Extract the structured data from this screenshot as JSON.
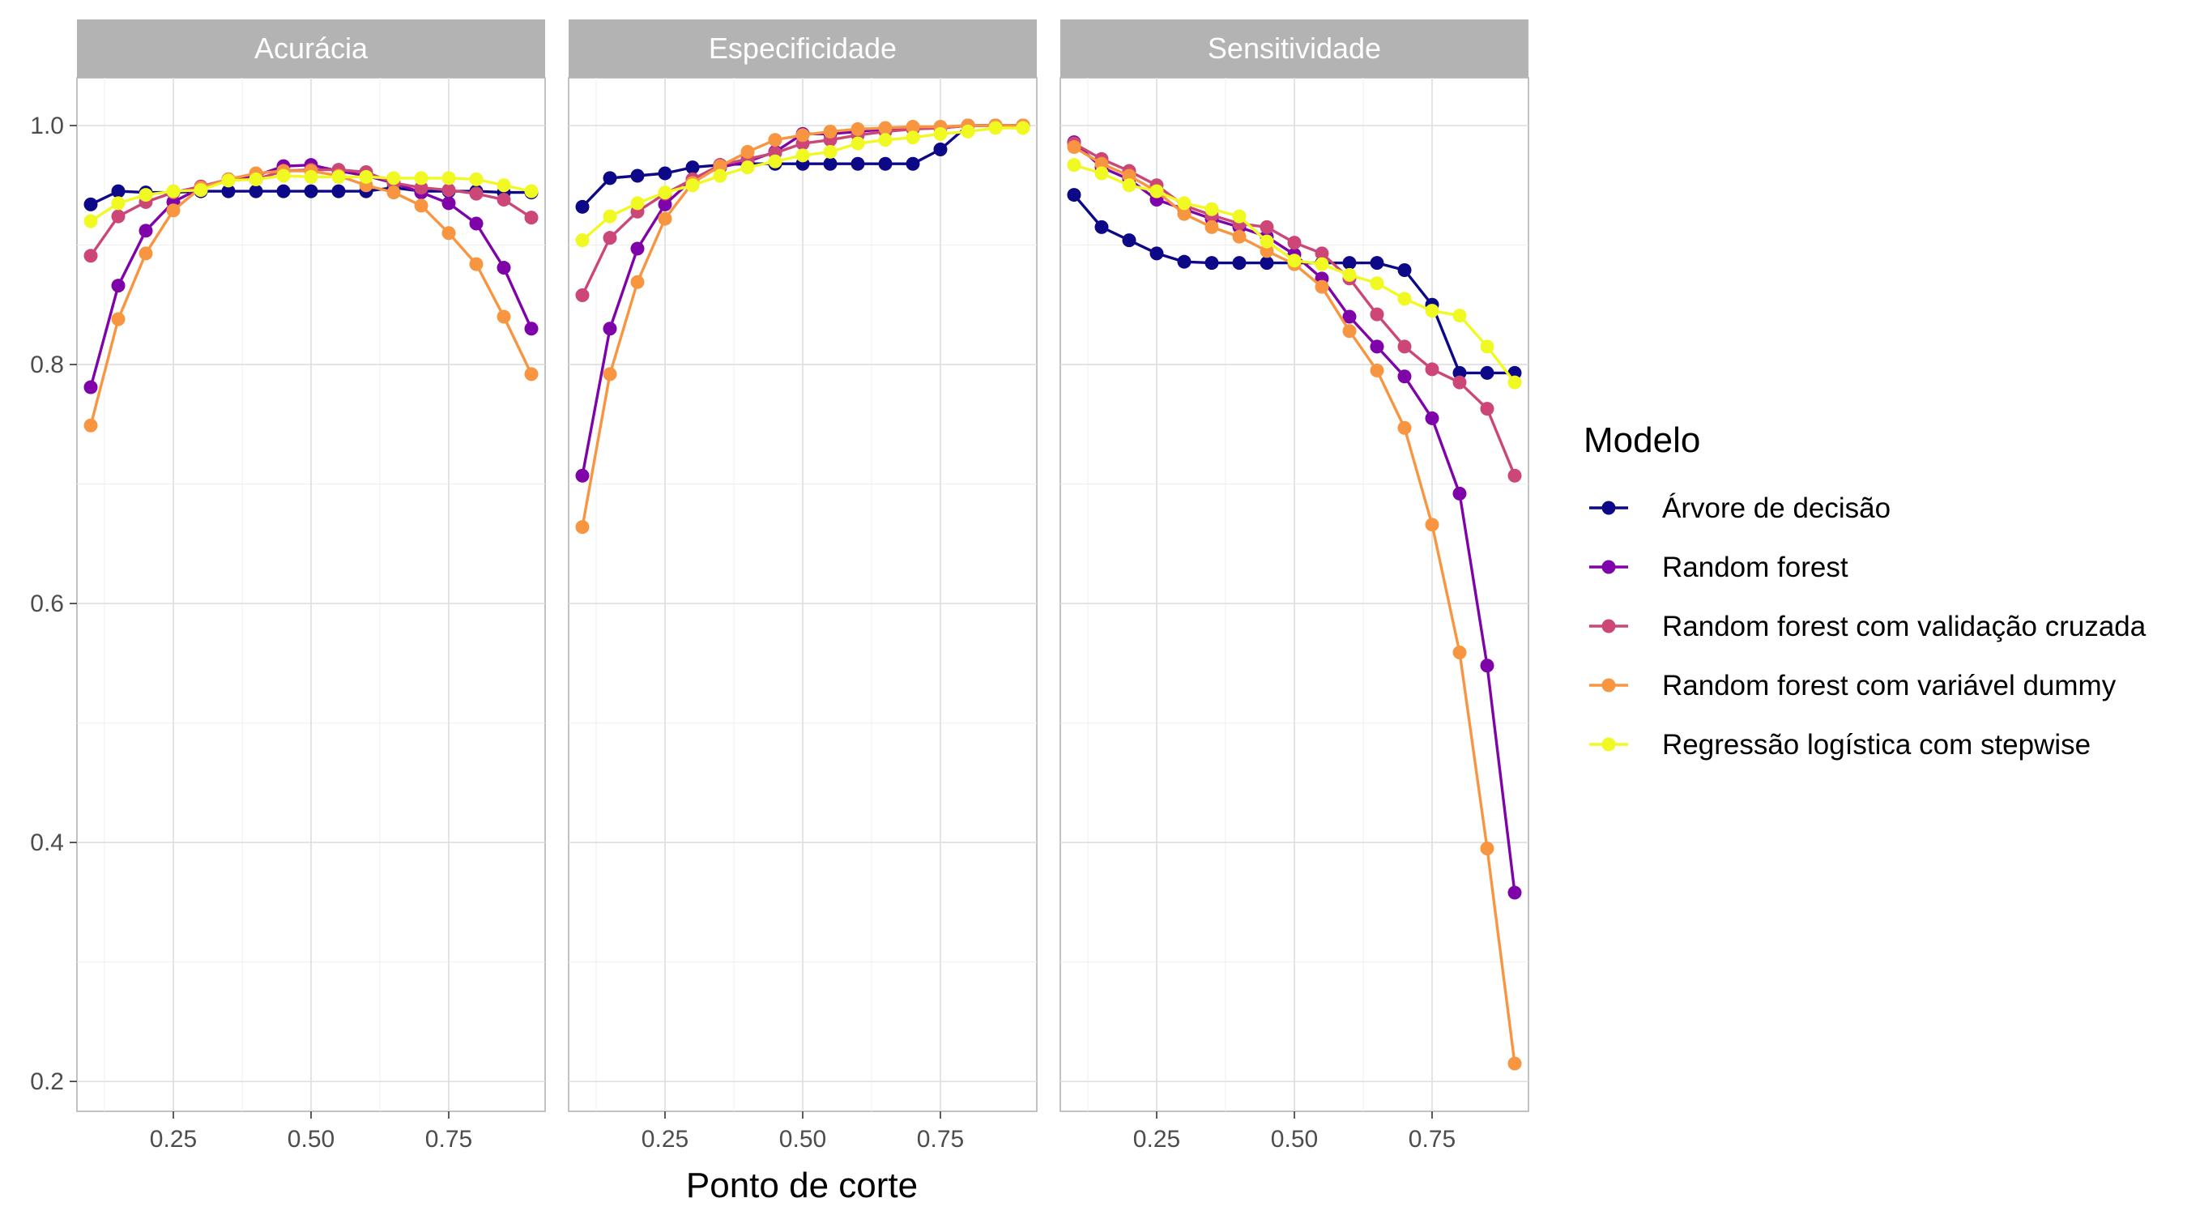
{
  "chart_data": {
    "type": "line",
    "xlabel": "Ponto de corte",
    "ylabel": "",
    "xlim": [
      0.075,
      0.925
    ],
    "ylim": [
      0.175,
      1.04
    ],
    "x_ticks": [
      0.25,
      0.5,
      0.75
    ],
    "y_ticks": [
      0.2,
      0.4,
      0.6,
      0.8,
      1.0
    ],
    "grid": true,
    "legend": {
      "title": "Modelo",
      "position": "right"
    },
    "x": [
      0.1,
      0.15,
      0.2,
      0.25,
      0.3,
      0.35,
      0.4,
      0.45,
      0.5,
      0.55,
      0.6,
      0.65,
      0.7,
      0.75,
      0.8,
      0.85,
      0.9
    ],
    "panels": [
      {
        "title": "Acurácia",
        "series": [
          {
            "name": "Árvore de decisão",
            "color": "#0d0887",
            "values": [
              0.934,
              0.945,
              0.944,
              0.944,
              0.945,
              0.945,
              0.945,
              0.945,
              0.945,
              0.945,
              0.945,
              0.948,
              0.945,
              0.945,
              0.945,
              0.944,
              0.944
            ]
          },
          {
            "name": "Random forest",
            "color": "#7e03a8",
            "values": [
              0.781,
              0.866,
              0.912,
              0.936,
              0.948,
              0.955,
              0.958,
              0.966,
              0.967,
              0.962,
              0.958,
              0.952,
              0.944,
              0.935,
              0.918,
              0.881,
              0.83
            ]
          },
          {
            "name": "Random forest com validação cruzada",
            "color": "#cc4778",
            "values": [
              0.891,
              0.924,
              0.936,
              0.944,
              0.949,
              0.955,
              0.955,
              0.962,
              0.963,
              0.963,
              0.961,
              0.952,
              0.948,
              0.946,
              0.943,
              0.938,
              0.923
            ]
          },
          {
            "name": "Random forest com variável dummy",
            "color": "#f89540",
            "values": [
              0.749,
              0.838,
              0.893,
              0.929,
              0.948,
              0.955,
              0.96,
              0.962,
              0.962,
              0.958,
              0.95,
              0.944,
              0.933,
              0.91,
              0.884,
              0.84,
              0.792
            ]
          },
          {
            "name": "Regressão logística com stepwise",
            "color": "#f0f921",
            "values": [
              0.92,
              0.935,
              0.942,
              0.945,
              0.946,
              0.954,
              0.955,
              0.958,
              0.957,
              0.957,
              0.957,
              0.956,
              0.956,
              0.956,
              0.955,
              0.95,
              0.945
            ]
          }
        ]
      },
      {
        "title": "Especificidade",
        "series": [
          {
            "name": "Árvore de decisão",
            "color": "#0d0887",
            "values": [
              0.932,
              0.956,
              0.958,
              0.96,
              0.965,
              0.967,
              0.968,
              0.968,
              0.968,
              0.968,
              0.968,
              0.968,
              0.968,
              0.98,
              1.0,
              1.0,
              1.0
            ]
          },
          {
            "name": "Random forest",
            "color": "#7e03a8",
            "values": [
              0.707,
              0.83,
              0.897,
              0.934,
              0.955,
              0.965,
              0.97,
              0.978,
              0.993,
              0.993,
              0.995,
              0.997,
              0.998,
              0.998,
              1.0,
              1.0,
              1.0
            ]
          },
          {
            "name": "Random forest com validação cruzada",
            "color": "#cc4778",
            "values": [
              0.858,
              0.906,
              0.928,
              0.943,
              0.955,
              0.967,
              0.972,
              0.977,
              0.985,
              0.988,
              0.992,
              0.995,
              0.997,
              0.998,
              1.0,
              1.0,
              1.0
            ]
          },
          {
            "name": "Random forest com variável dummy",
            "color": "#f89540",
            "values": [
              0.664,
              0.792,
              0.869,
              0.922,
              0.952,
              0.966,
              0.978,
              0.988,
              0.992,
              0.995,
              0.997,
              0.998,
              0.999,
              0.999,
              1.0,
              1.0,
              1.0
            ]
          },
          {
            "name": "Regressão logística com stepwise",
            "color": "#f0f921",
            "values": [
              0.904,
              0.924,
              0.935,
              0.944,
              0.95,
              0.958,
              0.965,
              0.97,
              0.975,
              0.978,
              0.985,
              0.988,
              0.99,
              0.993,
              0.995,
              0.998,
              0.998
            ]
          }
        ]
      },
      {
        "title": "Sensitividade",
        "series": [
          {
            "name": "Árvore de decisão",
            "color": "#0d0887",
            "values": [
              0.942,
              0.915,
              0.904,
              0.893,
              0.886,
              0.885,
              0.885,
              0.885,
              0.885,
              0.885,
              0.885,
              0.885,
              0.879,
              0.85,
              0.793,
              0.793,
              0.793
            ]
          },
          {
            "name": "Random forest",
            "color": "#7e03a8",
            "values": [
              0.986,
              0.965,
              0.955,
              0.938,
              0.93,
              0.922,
              0.915,
              0.907,
              0.892,
              0.872,
              0.84,
              0.815,
              0.79,
              0.755,
              0.692,
              0.548,
              0.358
            ]
          },
          {
            "name": "Random forest com validação cruzada",
            "color": "#cc4778",
            "values": [
              0.985,
              0.972,
              0.962,
              0.95,
              0.933,
              0.925,
              0.918,
              0.915,
              0.902,
              0.893,
              0.872,
              0.842,
              0.815,
              0.796,
              0.785,
              0.763,
              0.707
            ]
          },
          {
            "name": "Random forest com variável dummy",
            "color": "#f89540",
            "values": [
              0.982,
              0.968,
              0.958,
              0.945,
              0.926,
              0.915,
              0.907,
              0.895,
              0.884,
              0.865,
              0.828,
              0.795,
              0.747,
              0.666,
              0.559,
              0.395,
              0.215
            ]
          },
          {
            "name": "Regressão logística com stepwise",
            "color": "#f0f921",
            "values": [
              0.967,
              0.96,
              0.95,
              0.945,
              0.935,
              0.93,
              0.924,
              0.903,
              0.887,
              0.884,
              0.875,
              0.868,
              0.855,
              0.845,
              0.841,
              0.815,
              0.785
            ]
          }
        ]
      }
    ]
  }
}
